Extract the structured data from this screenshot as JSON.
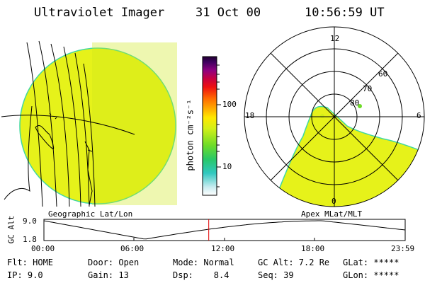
{
  "header": {
    "instrument": "Ultraviolet Imager",
    "date": "31 Oct 00",
    "time": "10:56:59 UT"
  },
  "colorbar": {
    "unit_label": "photon cm⁻²s⁻¹",
    "scale": "log",
    "ticks": [
      "100",
      "10"
    ]
  },
  "polar_plot": {
    "mlt_labels": {
      "top": "12",
      "left": "18",
      "right": "6",
      "bottom": "0"
    },
    "lat_labels": [
      "80",
      "70",
      "60"
    ],
    "title": "Apex MLat/MLT"
  },
  "geo_plot": {
    "title": "Geographic Lat/Lon"
  },
  "altitude_plot": {
    "ylabel": "GC Alt",
    "y_ticks": [
      "9.0",
      "1.8"
    ],
    "x_ticks": [
      "00:00",
      "06:00",
      "12:00",
      "18:00",
      "23:59"
    ],
    "current_time_marker_hours": 10.95
  },
  "status": {
    "filter": "Flt: HOME",
    "door": "Door: Open",
    "mode": "Mode: Normal",
    "gc_alt": "GC Alt: 7.2 Re",
    "glat": "GLat: *****",
    "ip": "IP: 9.0",
    "gain": "Gain: 13",
    "dsp": "Dsp:    8.4",
    "seq": "Seq: 39",
    "glon": "GLon: *****"
  },
  "colors": {
    "image_fill": "#e6f21a",
    "image_edge": "#40d8a0",
    "marker": "#e00000"
  }
}
